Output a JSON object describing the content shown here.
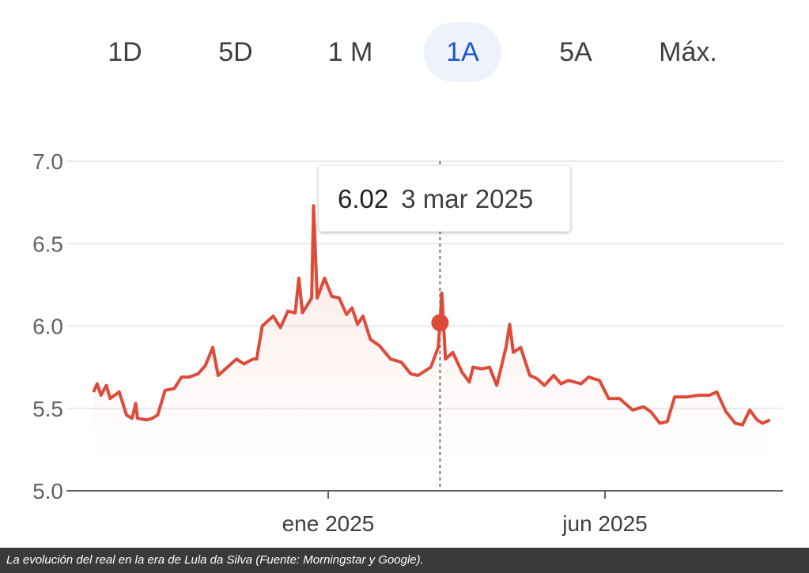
{
  "tabs": [
    {
      "label": "1D",
      "selected": false
    },
    {
      "label": "5D",
      "selected": false
    },
    {
      "label": "1 M",
      "selected": false
    },
    {
      "label": "1A",
      "selected": true
    },
    {
      "label": "5A",
      "selected": false
    },
    {
      "label": "Máx.",
      "selected": false
    }
  ],
  "tooltip": {
    "value": "6.02",
    "date": "3 mar 2025"
  },
  "caption": "La evolución del real en la era de Lula da Silva (Fuente: Morningstar y Google).",
  "colors": {
    "line": "#dd4b39",
    "accent": "#1a56d6",
    "grid": "#e8eaed"
  },
  "chart_data": {
    "type": "line",
    "ylim": [
      5.0,
      7.0
    ],
    "yticks": [
      "5.0",
      "5.5",
      "6.0",
      "6.5",
      "7.0"
    ],
    "xticks": [
      {
        "label": "ene 2025",
        "date": "2025-01-01"
      },
      {
        "label": "jun 2025",
        "date": "2025-06-01"
      }
    ],
    "grid": true,
    "highlight": {
      "date": "2025-03-03",
      "value": 6.02
    },
    "x": [
      "2024-08-26",
      "2024-08-28",
      "2024-08-30",
      "2024-09-02",
      "2024-09-04",
      "2024-09-09",
      "2024-09-13",
      "2024-09-16",
      "2024-09-18",
      "2024-09-19",
      "2024-09-24",
      "2024-09-27",
      "2024-09-30",
      "2024-10-04",
      "2024-10-09",
      "2024-10-13",
      "2024-10-17",
      "2024-10-22",
      "2024-10-26",
      "2024-10-30",
      "2024-11-02",
      "2024-11-08",
      "2024-11-12",
      "2024-11-16",
      "2024-11-21",
      "2024-11-23",
      "2024-11-26",
      "2024-12-02",
      "2024-12-06",
      "2024-12-10",
      "2024-12-14",
      "2024-12-16",
      "2024-12-18",
      "2024-12-23",
      "2024-12-24",
      "2024-12-26",
      "2024-12-30",
      "2025-01-03",
      "2025-01-07",
      "2025-01-11",
      "2025-01-14",
      "2025-01-17",
      "2025-01-20",
      "2025-01-24",
      "2025-01-29",
      "2025-02-04",
      "2025-02-10",
      "2025-02-15",
      "2025-02-19",
      "2025-02-26",
      "2025-03-02",
      "2025-03-03",
      "2025-03-04",
      "2025-03-06",
      "2025-03-10",
      "2025-03-15",
      "2025-03-19",
      "2025-03-21",
      "2025-03-26",
      "2025-03-30",
      "2025-04-03",
      "2025-04-08",
      "2025-04-10",
      "2025-04-12",
      "2025-04-16",
      "2025-04-21",
      "2025-04-25",
      "2025-04-29",
      "2025-05-04",
      "2025-05-08",
      "2025-05-12",
      "2025-05-19",
      "2025-05-23",
      "2025-05-29",
      "2025-06-03",
      "2025-06-09",
      "2025-06-16",
      "2025-06-22",
      "2025-06-26",
      "2025-07-01",
      "2025-07-05",
      "2025-07-09",
      "2025-07-16",
      "2025-07-22",
      "2025-07-28",
      "2025-08-01",
      "2025-08-06",
      "2025-08-11",
      "2025-08-15",
      "2025-08-19",
      "2025-08-23",
      "2025-08-26",
      "2025-08-30"
    ],
    "values": [
      5.6,
      5.65,
      5.58,
      5.64,
      5.56,
      5.6,
      5.46,
      5.44,
      5.53,
      5.44,
      5.43,
      5.44,
      5.46,
      5.61,
      5.62,
      5.69,
      5.69,
      5.71,
      5.76,
      5.87,
      5.7,
      5.76,
      5.8,
      5.77,
      5.8,
      5.8,
      6.0,
      6.06,
      5.99,
      6.09,
      6.08,
      6.29,
      6.08,
      6.17,
      6.73,
      6.17,
      6.29,
      6.18,
      6.17,
      6.07,
      6.11,
      6.01,
      6.06,
      5.92,
      5.88,
      5.8,
      5.78,
      5.71,
      5.7,
      5.75,
      5.87,
      6.02,
      6.2,
      5.8,
      5.84,
      5.72,
      5.66,
      5.75,
      5.74,
      5.75,
      5.64,
      5.87,
      6.01,
      5.84,
      5.87,
      5.7,
      5.68,
      5.64,
      5.7,
      5.65,
      5.67,
      5.65,
      5.69,
      5.67,
      5.56,
      5.56,
      5.49,
      5.51,
      5.48,
      5.41,
      5.42,
      5.57,
      5.57,
      5.58,
      5.58,
      5.6,
      5.48,
      5.41,
      5.4,
      5.49,
      5.43,
      5.41,
      5.43
    ]
  }
}
